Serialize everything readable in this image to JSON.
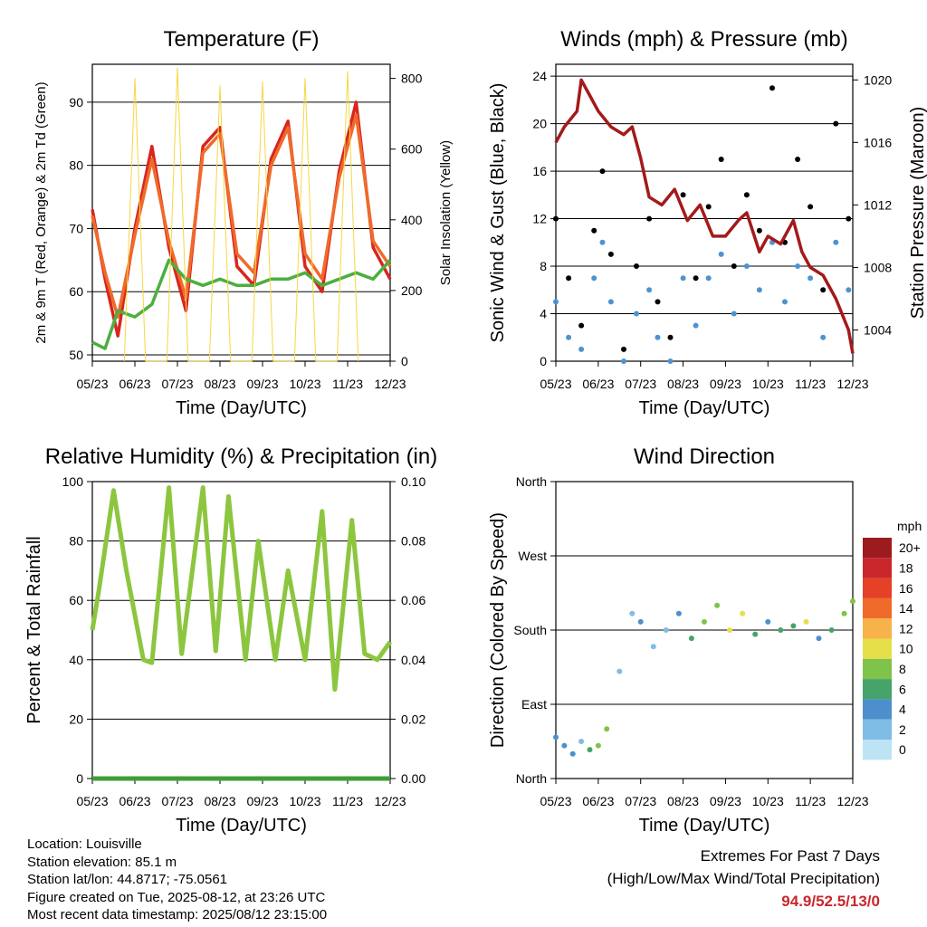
{
  "chart_data": [
    {
      "type": "line",
      "title": "Temperature (F)",
      "xlabel": "Time (Day/UTC)",
      "ylabel_left": "2m & 9m T (Red, Orange) & 2m Td (Green)",
      "ylabel_right": "Solar Insolation (Yellow)",
      "x_ticks": [
        "05/23",
        "06/23",
        "07/23",
        "08/23",
        "09/23",
        "10/23",
        "11/23",
        "12/23"
      ],
      "ylim_left": [
        49,
        96
      ],
      "yticks_left": [
        50,
        60,
        70,
        80,
        90
      ],
      "ylim_right": [
        0,
        840
      ],
      "yticks_right": [
        0,
        200,
        400,
        600,
        800
      ],
      "series": [
        {
          "name": "2m T",
          "color": "#d7261e",
          "x": [
            0,
            0.3,
            0.6,
            1.0,
            1.4,
            1.8,
            2.2,
            2.6,
            3.0,
            3.4,
            3.8,
            4.2,
            4.6,
            5.0,
            5.4,
            5.8,
            6.2,
            6.6,
            7.0
          ],
          "y": [
            73,
            62,
            53,
            70,
            83,
            67,
            57,
            83,
            86,
            64,
            61,
            81,
            87,
            64,
            60,
            79,
            90,
            67,
            62
          ]
        },
        {
          "name": "9m T",
          "color": "#f06a2a",
          "x": [
            0,
            0.3,
            0.6,
            1.0,
            1.4,
            1.8,
            2.2,
            2.6,
            3.0,
            3.4,
            3.8,
            4.2,
            4.6,
            5.0,
            5.4,
            5.8,
            6.2,
            6.6,
            7.0
          ],
          "y": [
            72,
            63,
            56,
            69,
            81,
            68,
            59,
            82,
            85,
            66,
            63,
            80,
            86,
            66,
            62,
            78,
            88,
            68,
            64
          ]
        },
        {
          "name": "2m Td",
          "color": "#4caf3f",
          "x": [
            0,
            0.3,
            0.6,
            1.0,
            1.4,
            1.8,
            2.2,
            2.6,
            3.0,
            3.4,
            3.8,
            4.2,
            4.6,
            5.0,
            5.4,
            5.8,
            6.2,
            6.6,
            7.0
          ],
          "y": [
            52,
            51,
            57,
            56,
            58,
            65,
            62,
            61,
            62,
            61,
            61,
            62,
            62,
            63,
            61,
            62,
            63,
            62,
            65
          ]
        },
        {
          "name": "Solar Insolation",
          "axis": "right",
          "color": "#f5d742",
          "x": [
            0.75,
            1.0,
            1.25,
            1.75,
            2.0,
            2.25,
            2.75,
            3.0,
            3.25,
            3.75,
            4.0,
            4.25,
            4.75,
            5.0,
            5.25,
            5.75,
            6.0,
            6.25
          ],
          "y": [
            0,
            800,
            0,
            0,
            830,
            0,
            0,
            780,
            0,
            0,
            790,
            0,
            0,
            800,
            0,
            0,
            820,
            0
          ]
        }
      ]
    },
    {
      "type": "scatter",
      "title": "Winds (mph) & Pressure (mb)",
      "xlabel": "Time (Day/UTC)",
      "ylabel_left": "Sonic Wind & Gust (Blue, Black)",
      "ylabel_right": "Station Pressure (Maroon)",
      "x_ticks": [
        "05/23",
        "06/23",
        "07/23",
        "08/23",
        "09/23",
        "10/23",
        "11/23",
        "12/23"
      ],
      "ylim_left": [
        0,
        25
      ],
      "yticks_left": [
        0,
        4,
        8,
        12,
        16,
        20,
        24
      ],
      "ylim_right": [
        1002,
        1021
      ],
      "yticks_right": [
        1004,
        1008,
        1012,
        1016,
        1020
      ],
      "series": [
        {
          "name": "Sonic Wind",
          "color": "#4d93cf",
          "x": [
            0,
            0.3,
            0.6,
            0.9,
            1.1,
            1.3,
            1.6,
            1.9,
            2.2,
            2.4,
            2.7,
            3.0,
            3.3,
            3.6,
            3.9,
            4.2,
            4.5,
            4.8,
            5.1,
            5.4,
            5.7,
            6.0,
            6.3,
            6.6,
            6.9
          ],
          "y": [
            5,
            2,
            1,
            7,
            10,
            5,
            0,
            4,
            6,
            2,
            0,
            7,
            3,
            7,
            9,
            4,
            8,
            6,
            10,
            5,
            8,
            7,
            2,
            10,
            6
          ]
        },
        {
          "name": "Gust",
          "color": "#000000",
          "x": [
            0,
            0.3,
            0.6,
            0.9,
            1.1,
            1.3,
            1.6,
            1.9,
            2.2,
            2.4,
            2.7,
            3.0,
            3.3,
            3.6,
            3.9,
            4.2,
            4.5,
            4.8,
            5.1,
            5.4,
            5.7,
            6.0,
            6.3,
            6.6,
            6.9
          ],
          "y": [
            12,
            7,
            3,
            11,
            16,
            9,
            1,
            8,
            12,
            5,
            2,
            14,
            7,
            13,
            17,
            8,
            14,
            11,
            23,
            10,
            17,
            13,
            6,
            20,
            12
          ]
        },
        {
          "name": "Station Pressure",
          "axis": "right",
          "color": "#a31a1a",
          "x": [
            0,
            0.2,
            0.5,
            0.6,
            0.8,
            1.0,
            1.3,
            1.6,
            1.8,
            2.0,
            2.2,
            2.5,
            2.8,
            3.1,
            3.4,
            3.7,
            4.0,
            4.3,
            4.5,
            4.8,
            5.0,
            5.3,
            5.6,
            5.8,
            6.0,
            6.3,
            6.6,
            6.9,
            7.0
          ],
          "y": [
            1016,
            1017,
            1018,
            1020,
            1019,
            1018,
            1017,
            1016.5,
            1017,
            1015,
            1012.5,
            1012,
            1013,
            1011,
            1012,
            1010,
            1010,
            1011,
            1011.5,
            1009,
            1010,
            1009.5,
            1011,
            1009,
            1008,
            1007.5,
            1006,
            1004,
            1002.5
          ]
        }
      ]
    },
    {
      "type": "line",
      "title": "Relative Humidity (%) & Precipitation (in)",
      "xlabel": "Time (Day/UTC)",
      "ylabel_left": "Percent & Total Rainfall",
      "x_ticks": [
        "05/23",
        "06/23",
        "07/23",
        "08/23",
        "09/23",
        "10/23",
        "11/23",
        "12/23"
      ],
      "ylim_left": [
        0,
        100
      ],
      "yticks_left": [
        0,
        20,
        40,
        60,
        80,
        100
      ],
      "ylim_right": [
        0,
        0.1
      ],
      "yticks_right": [
        "0.00",
        "0.02",
        "0.04",
        "0.06",
        "0.08",
        "0.10"
      ],
      "series": [
        {
          "name": "Relative Humidity",
          "color": "#8cc63f",
          "x": [
            0,
            0.15,
            0.5,
            0.8,
            1.2,
            1.4,
            1.8,
            2.1,
            2.6,
            2.9,
            3.2,
            3.6,
            3.9,
            4.3,
            4.6,
            5.0,
            5.4,
            5.7,
            6.1,
            6.4,
            6.7,
            7.0
          ],
          "y": [
            50,
            63,
            97,
            70,
            40,
            39,
            98,
            42,
            98,
            43,
            95,
            40,
            80,
            40,
            70,
            40,
            90,
            30,
            87,
            42,
            40,
            46
          ]
        },
        {
          "name": "Total Rainfall",
          "axis": "right",
          "color": "#3f9e3a",
          "x": [
            0,
            7
          ],
          "y": [
            0,
            0
          ]
        }
      ]
    },
    {
      "type": "scatter",
      "title": "Wind Direction",
      "xlabel": "Time (Day/UTC)",
      "ylabel_left": "Direction (Colored By Speed)",
      "x_ticks": [
        "05/23",
        "06/23",
        "07/23",
        "08/23",
        "09/23",
        "10/23",
        "11/23",
        "12/23"
      ],
      "direction_ticks": [
        "North",
        "East",
        "South",
        "West",
        "North"
      ],
      "ylim_left": [
        0,
        360
      ],
      "yticks_left": [
        0,
        90,
        180,
        270,
        360
      ],
      "colorbar": {
        "title": "mph",
        "labels": [
          "0",
          "2",
          "4",
          "6",
          "8",
          "10",
          "12",
          "14",
          "16",
          "18",
          "20+"
        ],
        "colors": [
          "#bde3f5",
          "#7fbde6",
          "#4d8fcd",
          "#46a36a",
          "#7fc34a",
          "#e7df4a",
          "#f8b24a",
          "#f06a2a",
          "#e44126",
          "#c9262b",
          "#9b1b1e"
        ]
      },
      "series": [
        {
          "name": "Direction",
          "x": [
            0,
            0.2,
            0.4,
            0.6,
            0.8,
            1.0,
            1.2,
            1.5,
            1.8,
            2.0,
            2.3,
            2.6,
            2.9,
            3.2,
            3.5,
            3.8,
            4.1,
            4.4,
            4.7,
            5.0,
            5.3,
            5.6,
            5.9,
            6.2,
            6.5,
            6.8,
            7.0
          ],
          "y": [
            50,
            40,
            30,
            45,
            35,
            40,
            60,
            130,
            200,
            190,
            160,
            180,
            200,
            170,
            190,
            210,
            180,
            200,
            175,
            190,
            180,
            185,
            190,
            170,
            180,
            200,
            215
          ],
          "speed": [
            3,
            4,
            3,
            2,
            5,
            7,
            8,
            1,
            2,
            4,
            2,
            1,
            3,
            5,
            7,
            8,
            9,
            10,
            6,
            4,
            6,
            5,
            9,
            4,
            6,
            8,
            7
          ]
        }
      ]
    }
  ],
  "info_lines": [
    "Location: Louisville",
    "Station elevation: 85.1 m",
    "Station lat/lon: 44.8717; -75.0561",
    "Figure created on Tue, 2025-08-12, at 23:26 UTC",
    "Most recent data timestamp: 2025/08/12 23:15:00"
  ],
  "extremes": {
    "title": "Extremes For Past 7 Days",
    "subtitle": "(High/Low/Max Wind/Total Precipitation)",
    "values": "94.9/52.5/13/0"
  }
}
